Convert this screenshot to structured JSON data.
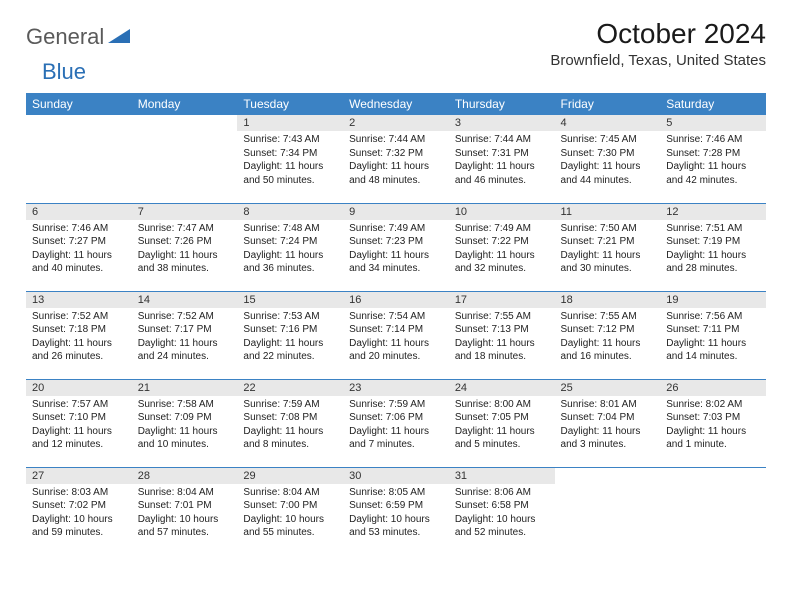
{
  "logo": {
    "word1": "General",
    "word2": "Blue"
  },
  "title": "October 2024",
  "location": "Brownfield, Texas, United States",
  "colors": {
    "header_bg": "#3b82c4",
    "header_fg": "#ffffff",
    "daynum_bg": "#e8e8e8",
    "row_divider": "#3b82c4",
    "logo_gray": "#5a5a5a",
    "logo_blue": "#2a6fb5"
  },
  "day_headers": [
    "Sunday",
    "Monday",
    "Tuesday",
    "Wednesday",
    "Thursday",
    "Friday",
    "Saturday"
  ],
  "weeks": [
    [
      null,
      null,
      {
        "n": "1",
        "sr": "Sunrise: 7:43 AM",
        "ss": "Sunset: 7:34 PM",
        "dl": "Daylight: 11 hours and 50 minutes."
      },
      {
        "n": "2",
        "sr": "Sunrise: 7:44 AM",
        "ss": "Sunset: 7:32 PM",
        "dl": "Daylight: 11 hours and 48 minutes."
      },
      {
        "n": "3",
        "sr": "Sunrise: 7:44 AM",
        "ss": "Sunset: 7:31 PM",
        "dl": "Daylight: 11 hours and 46 minutes."
      },
      {
        "n": "4",
        "sr": "Sunrise: 7:45 AM",
        "ss": "Sunset: 7:30 PM",
        "dl": "Daylight: 11 hours and 44 minutes."
      },
      {
        "n": "5",
        "sr": "Sunrise: 7:46 AM",
        "ss": "Sunset: 7:28 PM",
        "dl": "Daylight: 11 hours and 42 minutes."
      }
    ],
    [
      {
        "n": "6",
        "sr": "Sunrise: 7:46 AM",
        "ss": "Sunset: 7:27 PM",
        "dl": "Daylight: 11 hours and 40 minutes."
      },
      {
        "n": "7",
        "sr": "Sunrise: 7:47 AM",
        "ss": "Sunset: 7:26 PM",
        "dl": "Daylight: 11 hours and 38 minutes."
      },
      {
        "n": "8",
        "sr": "Sunrise: 7:48 AM",
        "ss": "Sunset: 7:24 PM",
        "dl": "Daylight: 11 hours and 36 minutes."
      },
      {
        "n": "9",
        "sr": "Sunrise: 7:49 AM",
        "ss": "Sunset: 7:23 PM",
        "dl": "Daylight: 11 hours and 34 minutes."
      },
      {
        "n": "10",
        "sr": "Sunrise: 7:49 AM",
        "ss": "Sunset: 7:22 PM",
        "dl": "Daylight: 11 hours and 32 minutes."
      },
      {
        "n": "11",
        "sr": "Sunrise: 7:50 AM",
        "ss": "Sunset: 7:21 PM",
        "dl": "Daylight: 11 hours and 30 minutes."
      },
      {
        "n": "12",
        "sr": "Sunrise: 7:51 AM",
        "ss": "Sunset: 7:19 PM",
        "dl": "Daylight: 11 hours and 28 minutes."
      }
    ],
    [
      {
        "n": "13",
        "sr": "Sunrise: 7:52 AM",
        "ss": "Sunset: 7:18 PM",
        "dl": "Daylight: 11 hours and 26 minutes."
      },
      {
        "n": "14",
        "sr": "Sunrise: 7:52 AM",
        "ss": "Sunset: 7:17 PM",
        "dl": "Daylight: 11 hours and 24 minutes."
      },
      {
        "n": "15",
        "sr": "Sunrise: 7:53 AM",
        "ss": "Sunset: 7:16 PM",
        "dl": "Daylight: 11 hours and 22 minutes."
      },
      {
        "n": "16",
        "sr": "Sunrise: 7:54 AM",
        "ss": "Sunset: 7:14 PM",
        "dl": "Daylight: 11 hours and 20 minutes."
      },
      {
        "n": "17",
        "sr": "Sunrise: 7:55 AM",
        "ss": "Sunset: 7:13 PM",
        "dl": "Daylight: 11 hours and 18 minutes."
      },
      {
        "n": "18",
        "sr": "Sunrise: 7:55 AM",
        "ss": "Sunset: 7:12 PM",
        "dl": "Daylight: 11 hours and 16 minutes."
      },
      {
        "n": "19",
        "sr": "Sunrise: 7:56 AM",
        "ss": "Sunset: 7:11 PM",
        "dl": "Daylight: 11 hours and 14 minutes."
      }
    ],
    [
      {
        "n": "20",
        "sr": "Sunrise: 7:57 AM",
        "ss": "Sunset: 7:10 PM",
        "dl": "Daylight: 11 hours and 12 minutes."
      },
      {
        "n": "21",
        "sr": "Sunrise: 7:58 AM",
        "ss": "Sunset: 7:09 PM",
        "dl": "Daylight: 11 hours and 10 minutes."
      },
      {
        "n": "22",
        "sr": "Sunrise: 7:59 AM",
        "ss": "Sunset: 7:08 PM",
        "dl": "Daylight: 11 hours and 8 minutes."
      },
      {
        "n": "23",
        "sr": "Sunrise: 7:59 AM",
        "ss": "Sunset: 7:06 PM",
        "dl": "Daylight: 11 hours and 7 minutes."
      },
      {
        "n": "24",
        "sr": "Sunrise: 8:00 AM",
        "ss": "Sunset: 7:05 PM",
        "dl": "Daylight: 11 hours and 5 minutes."
      },
      {
        "n": "25",
        "sr": "Sunrise: 8:01 AM",
        "ss": "Sunset: 7:04 PM",
        "dl": "Daylight: 11 hours and 3 minutes."
      },
      {
        "n": "26",
        "sr": "Sunrise: 8:02 AM",
        "ss": "Sunset: 7:03 PM",
        "dl": "Daylight: 11 hours and 1 minute."
      }
    ],
    [
      {
        "n": "27",
        "sr": "Sunrise: 8:03 AM",
        "ss": "Sunset: 7:02 PM",
        "dl": "Daylight: 10 hours and 59 minutes."
      },
      {
        "n": "28",
        "sr": "Sunrise: 8:04 AM",
        "ss": "Sunset: 7:01 PM",
        "dl": "Daylight: 10 hours and 57 minutes."
      },
      {
        "n": "29",
        "sr": "Sunrise: 8:04 AM",
        "ss": "Sunset: 7:00 PM",
        "dl": "Daylight: 10 hours and 55 minutes."
      },
      {
        "n": "30",
        "sr": "Sunrise: 8:05 AM",
        "ss": "Sunset: 6:59 PM",
        "dl": "Daylight: 10 hours and 53 minutes."
      },
      {
        "n": "31",
        "sr": "Sunrise: 8:06 AM",
        "ss": "Sunset: 6:58 PM",
        "dl": "Daylight: 10 hours and 52 minutes."
      },
      null,
      null
    ]
  ]
}
